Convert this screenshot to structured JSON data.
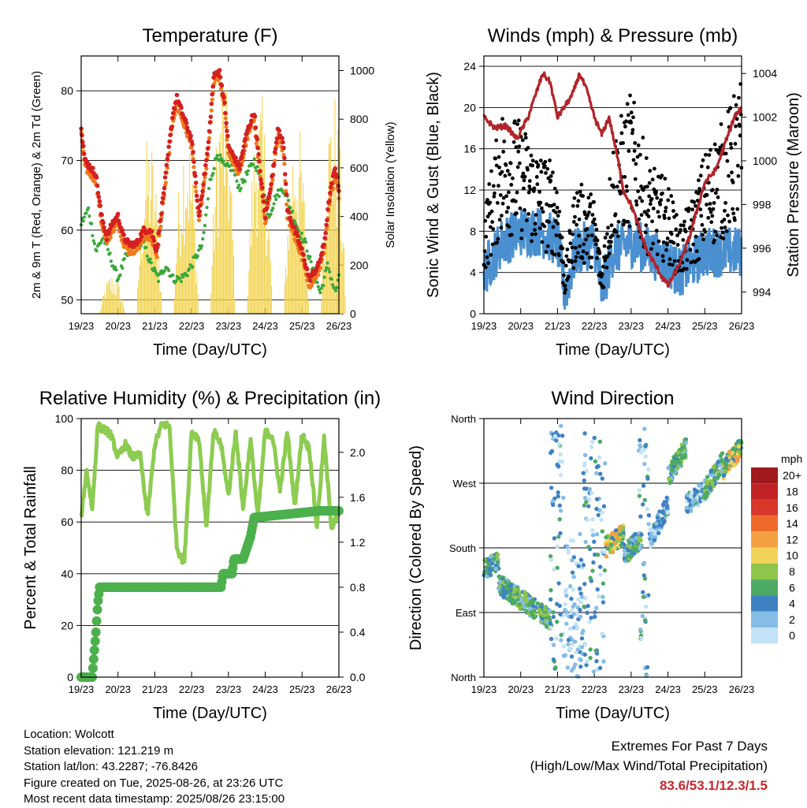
{
  "chart_data": [
    {
      "type": "line",
      "title": "Temperature (F)",
      "xlabel": "Time (Day/UTC)",
      "ylabel": "2m & 9m T (Red, Orange) & 2m Td (Green)",
      "ylabel_right": "Solar Insolation (Yellow)",
      "x_ticks": [
        "19/23",
        "20/23",
        "21/23",
        "22/23",
        "23/23",
        "24/23",
        "25/23",
        "26/23"
      ],
      "ylim": [
        48,
        85
      ],
      "y_ticks": [
        50,
        60,
        70,
        80
      ],
      "ylim_right": [
        0,
        1060
      ],
      "y_ticks_right": [
        0,
        200,
        400,
        600,
        800,
        1000
      ],
      "grid": true,
      "series": [
        {
          "name": "2m T",
          "color": "#d42020",
          "x": [
            0,
            0.1,
            0.25,
            0.4,
            0.55,
            0.7,
            0.85,
            1.0,
            1.15,
            1.3,
            1.5,
            1.7,
            1.9,
            2.05,
            2.3,
            2.5,
            2.6,
            2.8,
            3.0,
            3.2,
            3.45,
            3.6,
            3.75,
            3.9,
            4.0,
            4.1,
            4.3,
            4.5,
            4.7,
            4.85,
            5.0,
            5.2,
            5.35,
            5.5,
            5.6,
            5.8,
            6.0,
            6.2,
            6.45,
            6.6,
            6.75,
            6.9,
            7.0
          ],
          "values": [
            75,
            70,
            69,
            68,
            62,
            59,
            61,
            62,
            59,
            58,
            58,
            60,
            60,
            57,
            68,
            77,
            79,
            76,
            73,
            62,
            72,
            82,
            83,
            78,
            72,
            71,
            69,
            74,
            77,
            69,
            62,
            68,
            75,
            72,
            63,
            60,
            57,
            53,
            55,
            58,
            65,
            69,
            66
          ]
        },
        {
          "name": "9m T",
          "color": "#f07a1a",
          "x": [
            0,
            0.1,
            0.25,
            0.4,
            0.55,
            0.7,
            0.85,
            1.0,
            1.15,
            1.3,
            1.5,
            1.7,
            1.9,
            2.05,
            2.3,
            2.5,
            2.6,
            2.8,
            3.0,
            3.2,
            3.45,
            3.6,
            3.75,
            3.9,
            4.0,
            4.1,
            4.3,
            4.5,
            4.7,
            4.85,
            5.0,
            5.2,
            5.35,
            5.5,
            5.6,
            5.8,
            6.0,
            6.2,
            6.45,
            6.6,
            6.75,
            6.9,
            7.0
          ],
          "values": [
            74,
            69,
            68,
            67,
            61,
            58,
            60,
            61,
            58,
            57,
            57,
            59,
            59,
            56,
            67,
            76,
            78,
            75,
            72,
            61,
            71,
            81,
            82,
            77,
            71,
            70,
            68,
            73,
            76,
            68,
            61,
            67,
            74,
            71,
            62,
            59,
            56,
            52,
            54,
            57,
            64,
            68,
            65
          ]
        },
        {
          "name": "2m Td",
          "color": "#3aa83a",
          "x": [
            0,
            0.2,
            0.4,
            0.6,
            0.8,
            1.0,
            1.2,
            1.5,
            1.7,
            1.9,
            2.1,
            2.3,
            2.5,
            2.7,
            2.9,
            3.1,
            3.3,
            3.5,
            3.7,
            3.9,
            4.1,
            4.3,
            4.5,
            4.7,
            4.9,
            5.1,
            5.3,
            5.5,
            5.7,
            5.9,
            6.1,
            6.3,
            6.5,
            6.7,
            6.9,
            7.0
          ],
          "values": [
            61,
            63,
            57,
            59,
            56,
            53,
            56,
            58,
            58,
            55,
            53,
            55,
            53,
            53,
            54,
            56,
            58,
            67,
            71,
            69,
            69,
            66,
            68,
            70,
            67,
            62,
            65,
            66,
            63,
            60,
            58,
            54,
            51,
            55,
            51,
            53
          ]
        },
        {
          "name": "Solar Insolation",
          "color": "#f2d24a",
          "axis": "right",
          "peaks": [
            {
              "x": 0.85,
              "v": 170
            },
            {
              "x": 1.85,
              "v": 750
            },
            {
              "x": 2.85,
              "v": 810
            },
            {
              "x": 3.85,
              "v": 1000
            },
            {
              "x": 4.85,
              "v": 930
            },
            {
              "x": 5.85,
              "v": 830
            },
            {
              "x": 6.85,
              "v": 940
            }
          ]
        }
      ]
    },
    {
      "type": "scatter",
      "title": "Winds (mph) & Pressure (mb)",
      "xlabel": "Time (Day/UTC)",
      "ylabel": "Sonic Wind & Gust (Blue, Black)",
      "ylabel_right": "Station Pressure (Maroon)",
      "x_ticks": [
        "19/23",
        "20/23",
        "21/23",
        "22/23",
        "23/23",
        "24/23",
        "25/23",
        "26/23"
      ],
      "ylim": [
        0,
        25
      ],
      "y_ticks": [
        0,
        4,
        8,
        12,
        16,
        20,
        24
      ],
      "ylim_right": [
        993.0,
        1004.8
      ],
      "y_ticks_right": [
        994,
        996,
        998,
        1000,
        1002,
        1004
      ],
      "grid": true,
      "series": [
        {
          "name": "Sonic Wind",
          "color": "#4a90d0",
          "x": [
            0,
            0.5,
            1.0,
            1.5,
            2.0,
            2.2,
            2.5,
            3.0,
            3.2,
            3.5,
            4.0,
            4.5,
            5.0,
            5.3,
            5.7,
            6.0,
            6.5,
            7.0
          ],
          "values": [
            4,
            7,
            8,
            8,
            7,
            2,
            6,
            7,
            2,
            6,
            7,
            6,
            5,
            4,
            5,
            6,
            6,
            6
          ]
        },
        {
          "name": "Gust",
          "color": "#000000",
          "x": [
            0,
            0.5,
            1.0,
            1.5,
            2.0,
            2.2,
            2.5,
            3.0,
            3.2,
            3.5,
            4.0,
            4.5,
            5.0,
            5.3,
            5.7,
            6.0,
            6.5,
            7.0
          ],
          "values": [
            7,
            14,
            13,
            11,
            10,
            3,
            9,
            8,
            3,
            12,
            15,
            10,
            9,
            6,
            8,
            11,
            13,
            16
          ]
        },
        {
          "name": "Station Pressure",
          "color": "#b2242a",
          "axis": "right",
          "x": [
            0,
            0.3,
            0.6,
            0.9,
            1.2,
            1.4,
            1.6,
            1.8,
            2.0,
            2.2,
            2.4,
            2.6,
            2.8,
            3.0,
            3.2,
            3.4,
            3.6,
            3.8,
            4.0,
            4.2,
            4.4,
            4.6,
            4.8,
            5.0,
            5.2,
            5.4,
            5.6,
            5.8,
            6.0,
            6.3,
            6.6,
            6.8,
            7.0
          ],
          "values": [
            1002,
            1001.5,
            1001.6,
            1001,
            1002,
            1003,
            1004,
            1003.6,
            1002,
            1002.5,
            1003,
            1004,
            1003.2,
            1002,
            1001.2,
            1002,
            1000.4,
            998.6,
            998,
            997,
            996,
            995.4,
            994.8,
            994.3,
            994.9,
            995.6,
            996.6,
            997.8,
            999,
            999.6,
            1001,
            1002,
            1002.4
          ]
        }
      ]
    },
    {
      "type": "line",
      "title": "Relative Humidity (%) & Precipitation (in)",
      "xlabel": "Time (Day/UTC)",
      "ylabel": "Percent & Total Rainfall",
      "x_ticks": [
        "19/23",
        "20/23",
        "21/23",
        "22/23",
        "23/23",
        "24/23",
        "25/23",
        "26/23"
      ],
      "ylim": [
        0,
        100
      ],
      "y_ticks": [
        0,
        20,
        40,
        60,
        80,
        100
      ],
      "ylim_right": [
        0,
        2.3
      ],
      "y_ticks_right": [
        "0.0",
        "0.4",
        "0.8",
        "1.2",
        "1.6",
        "2.0"
      ],
      "grid": true,
      "series": [
        {
          "name": "Relative Humidity",
          "color": "#8ccc50",
          "x": [
            0,
            0.15,
            0.3,
            0.45,
            0.6,
            0.8,
            1.0,
            1.2,
            1.4,
            1.6,
            1.8,
            2.0,
            2.2,
            2.4,
            2.6,
            2.8,
            3.0,
            3.2,
            3.4,
            3.6,
            3.8,
            4.0,
            4.2,
            4.4,
            4.6,
            4.8,
            5.0,
            5.2,
            5.4,
            5.6,
            5.8,
            6.0,
            6.2,
            6.4,
            6.6,
            6.8,
            7.0
          ],
          "values": [
            62,
            80,
            65,
            97,
            96,
            94,
            85,
            90,
            85,
            86,
            62,
            90,
            98,
            97,
            50,
            44,
            95,
            92,
            58,
            95,
            90,
            70,
            95,
            65,
            92,
            62,
            95,
            93,
            72,
            95,
            66,
            94,
            88,
            58,
            92,
            58,
            63
          ]
        },
        {
          "name": "Total Precipitation",
          "color": "#4cb04c",
          "axis": "right",
          "x": [
            0,
            0.3,
            0.35,
            0.4,
            0.45,
            0.5,
            0.6,
            3.8,
            3.85,
            4.1,
            4.15,
            4.4,
            4.5,
            4.6,
            4.7,
            6.5,
            7.0
          ],
          "values": [
            0,
            0,
            0.2,
            0.4,
            0.65,
            0.8,
            0.8,
            0.8,
            0.92,
            0.92,
            1.05,
            1.05,
            1.15,
            1.25,
            1.42,
            1.48,
            1.48
          ]
        }
      ]
    },
    {
      "type": "scatter",
      "title": "Wind Direction",
      "xlabel": "Time (Day/UTC)",
      "ylabel": "Direction (Colored By Speed)",
      "x_ticks": [
        "19/23",
        "20/23",
        "21/23",
        "22/23",
        "23/23",
        "24/23",
        "25/23",
        "26/23"
      ],
      "y_ticks": [
        "North",
        "East",
        "South",
        "West",
        "North"
      ],
      "ylim": [
        0,
        360
      ],
      "colorbar": {
        "unit": "mph",
        "labels": [
          "20+",
          "18",
          "16",
          "14",
          "12",
          "10",
          "8",
          "6",
          "4",
          "2",
          "0"
        ],
        "colors": [
          "#a0191c",
          "#c02226",
          "#d8372a",
          "#ee6a2a",
          "#f5a040",
          "#f2d35a",
          "#8ec54a",
          "#4caa64",
          "#3f82c2",
          "#86bde6",
          "#c2e2f5"
        ]
      },
      "clusters": [
        {
          "x0": 0.0,
          "x1": 0.4,
          "dir0": 150,
          "dir1": 160,
          "speed": "med"
        },
        {
          "x0": 0.4,
          "x1": 1.8,
          "dir0": 130,
          "dir1": 80,
          "speed": "med"
        },
        {
          "x0": 1.8,
          "x1": 2.2,
          "dir0": 10,
          "dir1": 350,
          "speed": "low"
        },
        {
          "x0": 2.2,
          "x1": 2.7,
          "dir0": 0,
          "dir1": 200,
          "speed": "vlow"
        },
        {
          "x0": 2.7,
          "x1": 3.3,
          "dir0": 0,
          "dir1": 340,
          "speed": "low"
        },
        {
          "x0": 3.3,
          "x1": 3.8,
          "dir0": 180,
          "dir1": 200,
          "speed": "high"
        },
        {
          "x0": 3.8,
          "x1": 4.3,
          "dir0": 170,
          "dir1": 195,
          "speed": "med"
        },
        {
          "x0": 4.2,
          "x1": 4.5,
          "dir0": 0,
          "dir1": 350,
          "speed": "low"
        },
        {
          "x0": 4.5,
          "x1": 5.0,
          "dir0": 190,
          "dir1": 240,
          "speed": "low"
        },
        {
          "x0": 5.0,
          "x1": 5.5,
          "dir0": 280,
          "dir1": 320,
          "speed": "med"
        },
        {
          "x0": 5.5,
          "x1": 6.0,
          "dir0": 240,
          "dir1": 260,
          "speed": "low"
        },
        {
          "x0": 6.0,
          "x1": 6.5,
          "dir0": 260,
          "dir1": 300,
          "speed": "med"
        },
        {
          "x0": 6.5,
          "x1": 7.0,
          "dir0": 290,
          "dir1": 320,
          "speed": "high"
        }
      ]
    }
  ],
  "info": {
    "location": "Location: Wolcott",
    "elevation": "Station elevation: 121.219 m",
    "latlon": "Station lat/lon: 43.2287; -76.8426",
    "created": "Figure created on Tue, 2025-08-26, at 23:26 UTC",
    "recent": "Most recent data timestamp: 2025/08/26 23:15:00"
  },
  "extremes": {
    "title": "Extremes For Past 7 Days",
    "subtitle": "(High/Low/Max Wind/Total Precipitation)",
    "values": "83.6/53.1/12.3/1.5"
  }
}
